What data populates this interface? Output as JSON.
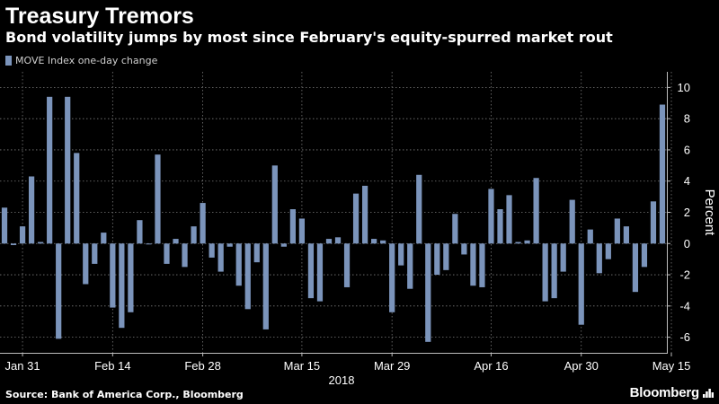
{
  "header": {
    "title": "Treasury Tremors",
    "subtitle": "Bond volatility jumps by most since February's equity-spurred market rout"
  },
  "legend": {
    "label": "MOVE Index one-day change"
  },
  "footer": {
    "source": "Source: Bank of America Corp., Bloomberg",
    "brand": "Bloomberg"
  },
  "colors": {
    "bar": "#7b94bb",
    "background": "#000000",
    "grid": "#7a7a7a"
  },
  "chart_data": {
    "type": "bar",
    "title": "Treasury Tremors",
    "subtitle": "Bond volatility jumps by most since February's equity-spurred market rout",
    "xlabel": "2018",
    "ylabel": "Percent",
    "ylim": [
      -7,
      11
    ],
    "yticks": [
      -6,
      -4,
      -2,
      0,
      2,
      4,
      6,
      8,
      10
    ],
    "grid": true,
    "legend_placement": "top-left",
    "x_tick_labels": [
      "Jan 31",
      "Feb 14",
      "Feb 28",
      "Mar 15",
      "Mar 29",
      "Apr 16",
      "Apr 30",
      "May 15"
    ],
    "x_tick_indices": [
      2,
      12,
      22,
      33,
      43,
      54,
      64,
      74
    ],
    "series": [
      {
        "name": "MOVE Index one-day change",
        "values": [
          2.3,
          -0.1,
          1.1,
          4.3,
          0.1,
          9.4,
          -6.1,
          9.4,
          5.8,
          -2.6,
          -1.3,
          0.7,
          -4.1,
          -5.4,
          -4.4,
          1.5,
          0.0,
          5.7,
          -1.3,
          0.3,
          -1.5,
          1.1,
          2.6,
          -0.9,
          -1.8,
          -0.2,
          -2.7,
          -4.2,
          -1.2,
          -5.5,
          5.0,
          -0.2,
          2.2,
          1.6,
          -3.5,
          -3.7,
          0.3,
          0.4,
          -2.8,
          3.2,
          3.7,
          0.3,
          0.2,
          -4.4,
          -1.4,
          -2.9,
          4.4,
          -6.3,
          -2.0,
          -1.7,
          1.9,
          -0.7,
          -2.7,
          -2.8,
          3.5,
          2.2,
          3.1,
          0.1,
          0.2,
          4.2,
          -3.7,
          -3.5,
          -1.8,
          2.8,
          -5.2,
          0.9,
          -1.9,
          -1.0,
          1.6,
          1.1,
          -3.1,
          -1.5,
          2.7,
          8.9
        ]
      }
    ]
  }
}
